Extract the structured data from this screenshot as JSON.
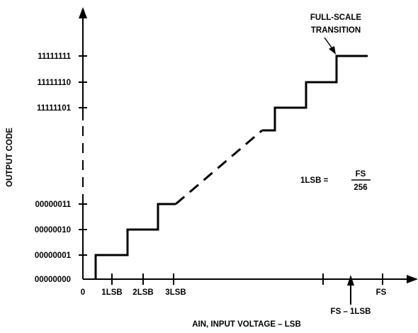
{
  "diagram": {
    "y_axis_title": "OUTPUT CODE",
    "x_axis_title": "AIN, INPUT VOLTAGE – LSB",
    "y_labels": [
      {
        "id": "code-11111111",
        "text": "11111111"
      },
      {
        "id": "code-11111110",
        "text": "11111110"
      },
      {
        "id": "code-11111101",
        "text": "11111101"
      },
      {
        "id": "code-00000011",
        "text": "00000011"
      },
      {
        "id": "code-00000010",
        "text": "00000010"
      },
      {
        "id": "code-00000001",
        "text": "00000001"
      },
      {
        "id": "code-00000000",
        "text": "00000000"
      }
    ],
    "x_labels": {
      "zero": "0",
      "lsb1": "1LSB",
      "lsb2": "2LSB",
      "lsb3": "3LSB",
      "fs": "FS",
      "fs_minus_1lsb": "FS – 1LSB"
    },
    "annotation": {
      "line1": "FULL-SCALE",
      "line2": "TRANSITION"
    },
    "formula": {
      "lhs": "1LSB =",
      "numerator": "FS",
      "denominator": "256"
    },
    "colors": {
      "ink": "#000000",
      "background": "#ffffff"
    }
  }
}
